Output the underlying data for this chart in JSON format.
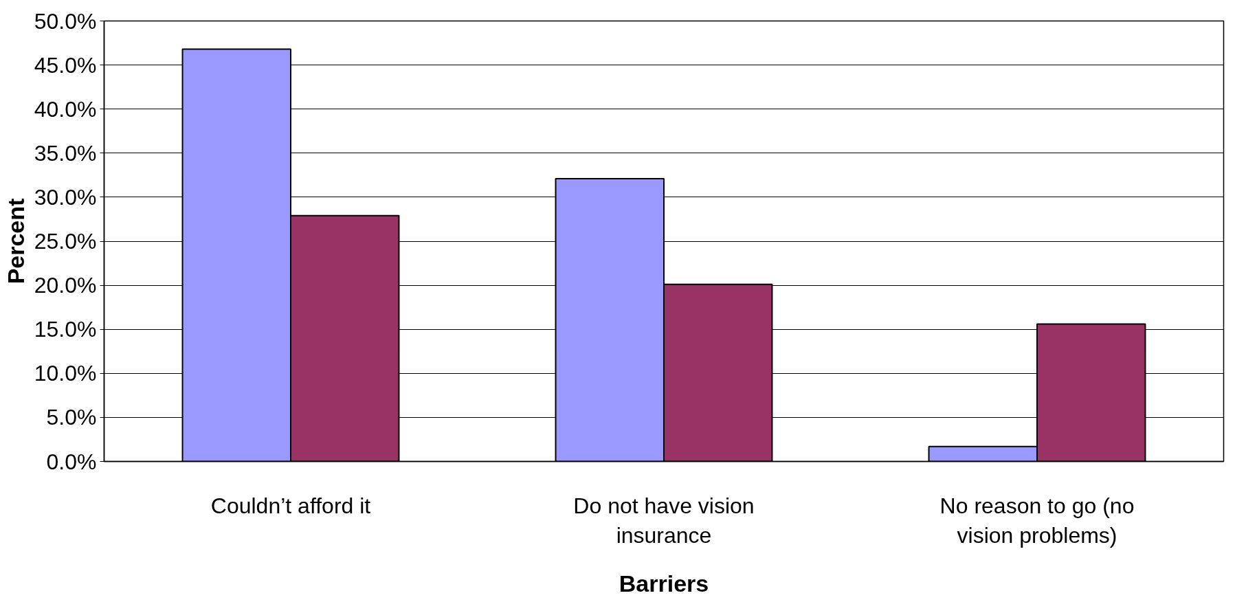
{
  "chart_data": {
    "type": "bar",
    "xlabel": "Barriers",
    "ylabel": "Percent",
    "categories": [
      "Couldn’t afford it",
      "Do not have vision insurance",
      "No reason to go (no vision problems)"
    ],
    "series": [
      {
        "color": "#9999ff",
        "values": [
          46.8,
          32.1,
          1.7
        ]
      },
      {
        "color": "#993366",
        "values": [
          27.9,
          20.1,
          15.6
        ]
      }
    ],
    "ylim": [
      0,
      50
    ],
    "yticks": [
      {
        "value": 0,
        "label": "0.0%"
      },
      {
        "value": 5,
        "label": "5.0%"
      },
      {
        "value": 10,
        "label": "10.0%"
      },
      {
        "value": 15,
        "label": "15.0%"
      },
      {
        "value": 20,
        "label": "20.0%"
      },
      {
        "value": 25,
        "label": "25.0%"
      },
      {
        "value": 30,
        "label": "30.0%"
      },
      {
        "value": 35,
        "label": "35.0%"
      },
      {
        "value": 40,
        "label": "40.0%"
      },
      {
        "value": 45,
        "label": "45.0%"
      },
      {
        "value": 50,
        "label": "50.0%"
      }
    ],
    "grid": "y"
  }
}
